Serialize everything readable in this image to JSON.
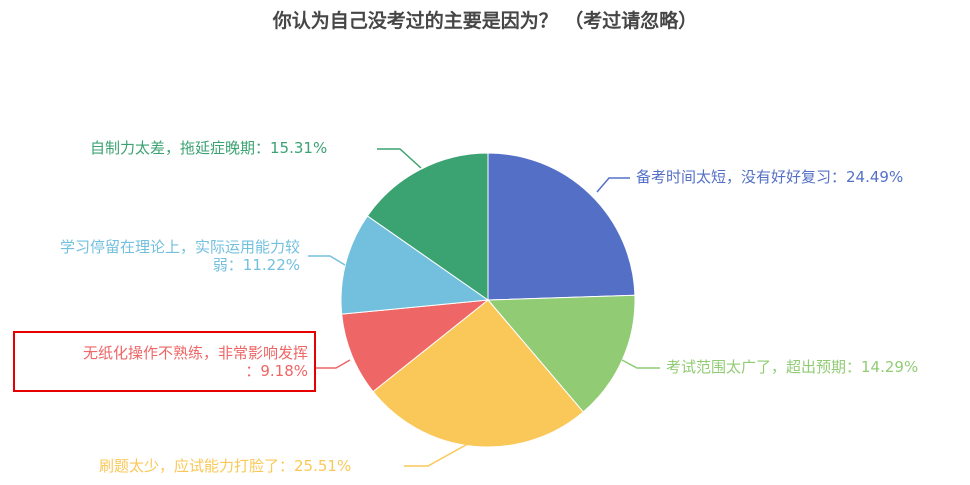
{
  "chart_data": {
    "type": "pie",
    "title": "你认为自己没考过的主要是因为？ （考过请忽略）",
    "slices": [
      {
        "label": "备考时间太短，没有好好复习",
        "value": 24.49,
        "color": "#5470c6"
      },
      {
        "label": "考试范围太广了，超出预期",
        "value": 14.29,
        "color": "#91cc75"
      },
      {
        "label": "刷题太少，应试能力打脸了",
        "value": 25.51,
        "color": "#fac858"
      },
      {
        "label": "无纸化操作不熟练，非常影响发挥",
        "value": 9.18,
        "color": "#ee6666"
      },
      {
        "label": "学习停留在理论上，实际运用能力较弱",
        "value": 11.22,
        "color": "#73c0de"
      },
      {
        "label": "自制力太差，拖延症晚期",
        "value": 15.31,
        "color": "#3ba272"
      }
    ],
    "label_format": "{name}：{percent}%",
    "start_angle": 90,
    "direction": "clockwise",
    "highlighted_slice": "无纸化操作不熟练，非常影响发挥"
  },
  "labels": {
    "s0": "备考时间太短，没有好好复习：24.49%",
    "s1": "考试范围太广了，超出预期：14.29%",
    "s2": "刷题太少，应试能力打脸了：25.51%",
    "s3_line1": "无纸化操作不熟练，非常影响发挥",
    "s3_line2": "：9.18%",
    "s4_line1": "学习停留在理论上，实际运用能力较",
    "s4_line2": "弱：11.22%",
    "s5": "自制力太差，拖延症晚期：15.31%"
  }
}
